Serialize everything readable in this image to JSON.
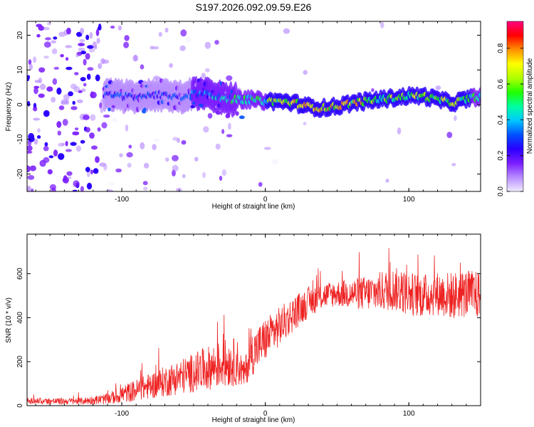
{
  "title": "S197.2026.092.09.59.E26",
  "chart_data": [
    {
      "type": "heatmap",
      "name": "spectrogram",
      "xlabel": "Height of straight line (km)",
      "ylabel": "Frequency (Hz)",
      "xlim": [
        -166,
        150
      ],
      "ylim": [
        -25,
        24
      ],
      "x_ticks": [
        -100,
        0,
        100
      ],
      "x_tick_labels": [
        "-100",
        "0",
        "100"
      ],
      "y_ticks": [
        -20,
        -10,
        0,
        10,
        20
      ],
      "y_tick_labels": [
        "-20",
        "-10",
        "0",
        "10",
        "20"
      ],
      "colorbar": {
        "label": "Normalized spectral amplitude",
        "range": [
          0,
          0.95
        ],
        "ticks": [
          0.0,
          0.2,
          0.4,
          0.6,
          0.8
        ],
        "tick_labels": [
          "0.0",
          "0.2",
          "0.4",
          "0.6",
          "0.8"
        ],
        "colors": [
          "#f0eaff",
          "#b88cff",
          "#7a1cff",
          "#2a00ff",
          "#0050ff",
          "#00c8ff",
          "#00ffa0",
          "#20ff00",
          "#b0ff00",
          "#ffff00",
          "#ff9000",
          "#ff0000",
          "#ff0080"
        ]
      },
      "ridge": {
        "x": [
          -110,
          -100,
          -90,
          -80,
          -70,
          -60,
          -50,
          -40,
          -35,
          -30,
          -25,
          -20,
          -10,
          0,
          10,
          20,
          30,
          40,
          50,
          60,
          70,
          80,
          90,
          100,
          110,
          120,
          130,
          140,
          150
        ],
        "y": [
          3,
          2.5,
          2,
          2.5,
          3,
          2,
          3,
          3.5,
          2.5,
          2,
          1.5,
          1.5,
          1.5,
          1,
          1,
          0.5,
          -0.5,
          -1,
          -0.5,
          0.5,
          1,
          1.5,
          2,
          2.5,
          2.5,
          1.5,
          0.5,
          1.5,
          2.5
        ],
        "amplitude": [
          0.3,
          0.35,
          0.35,
          0.35,
          0.35,
          0.3,
          0.4,
          0.45,
          0.5,
          0.55,
          0.55,
          0.6,
          0.6,
          0.65,
          0.75,
          0.85,
          0.9,
          0.9,
          0.85,
          0.85,
          0.8,
          0.7,
          0.75,
          0.7,
          0.8,
          0.75,
          0.75,
          0.7,
          0.6
        ]
      }
    },
    {
      "type": "line",
      "name": "snr",
      "xlabel": "Height of straight line (km)",
      "ylabel": "SNR (10 * v/v)",
      "xlim": [
        -166,
        150
      ],
      "ylim": [
        0,
        780
      ],
      "x_ticks": [
        -100,
        0,
        100
      ],
      "x_tick_labels": [
        "-100",
        "0",
        "100"
      ],
      "y_ticks": [
        0,
        200,
        400,
        600
      ],
      "y_tick_labels": [
        "0",
        "200",
        "400",
        "600"
      ],
      "color": "#ee2222",
      "series": [
        {
          "name": "SNR",
          "x": [
            -166,
            -150,
            -130,
            -110,
            -100,
            -90,
            -80,
            -70,
            -60,
            -50,
            -40,
            -30,
            -20,
            -15,
            -10,
            0,
            10,
            20,
            30,
            40,
            50,
            60,
            70,
            80,
            90,
            100,
            110,
            120,
            130,
            140,
            150
          ],
          "y": [
            20,
            20,
            20,
            30,
            50,
            70,
            90,
            110,
            130,
            150,
            170,
            190,
            200,
            140,
            230,
            300,
            360,
            420,
            470,
            500,
            510,
            510,
            510,
            520,
            530,
            510,
            500,
            510,
            500,
            510,
            500
          ],
          "noise_amplitude": [
            15,
            15,
            15,
            25,
            40,
            50,
            60,
            70,
            80,
            90,
            100,
            110,
            110,
            60,
            100,
            100,
            90,
            80,
            70,
            60,
            60,
            70,
            80,
            90,
            100,
            100,
            100,
            100,
            110,
            110,
            110
          ]
        }
      ]
    }
  ]
}
